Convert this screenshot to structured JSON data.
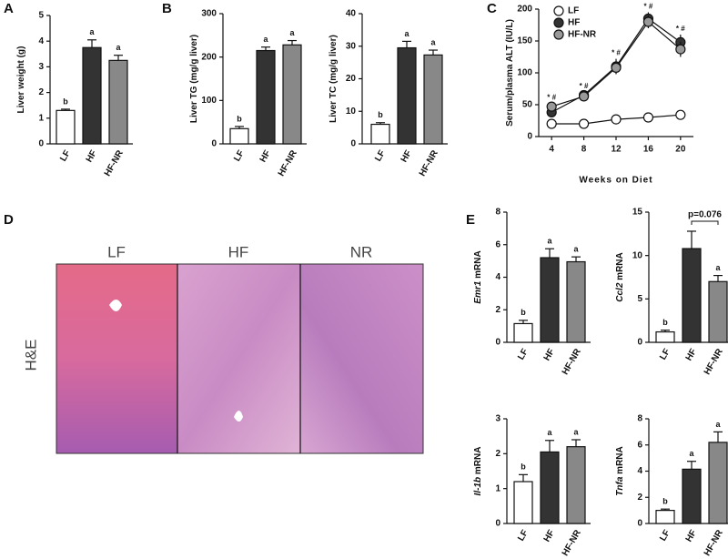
{
  "panel_labels": [
    "A",
    "B",
    "C",
    "D",
    "E"
  ],
  "histology": {
    "columns": [
      "LF",
      "HF",
      "NR"
    ],
    "row_label": "H&E"
  },
  "chart_data": [
    {
      "type": "bar",
      "ylabel": "Liver weight (g)",
      "categories": [
        "LF",
        "HF",
        "HF-NR"
      ],
      "colors": [
        "#ffffff",
        "#333333",
        "#888888"
      ],
      "values": [
        1.3,
        3.75,
        3.25
      ],
      "errors": [
        0.05,
        0.3,
        0.2
      ],
      "letters": [
        "b",
        "a",
        "a"
      ],
      "ylim": [
        0,
        5
      ],
      "yticks": [
        0,
        1,
        2,
        3,
        4,
        5
      ]
    },
    {
      "type": "bar",
      "ylabel": "Liver TG (mg/g liver)",
      "categories": [
        "LF",
        "HF",
        "HF-NR"
      ],
      "colors": [
        "#ffffff",
        "#333333",
        "#888888"
      ],
      "values": [
        35,
        215,
        228
      ],
      "errors": [
        5,
        8,
        10
      ],
      "letters": [
        "b",
        "a",
        "a"
      ],
      "ylim": [
        0,
        300
      ],
      "yticks": [
        0,
        100,
        200,
        300
      ]
    },
    {
      "type": "bar",
      "ylabel": "Liver TC (mg/g liver)",
      "categories": [
        "LF",
        "HF",
        "HF-NR"
      ],
      "colors": [
        "#ffffff",
        "#333333",
        "#888888"
      ],
      "values": [
        6,
        29.5,
        27.3
      ],
      "errors": [
        0.5,
        2,
        1.5
      ],
      "letters": [
        "b",
        "a",
        "a"
      ],
      "ylim": [
        0,
        40
      ],
      "yticks": [
        0,
        10,
        20,
        30,
        40
      ]
    },
    {
      "type": "line",
      "ylabel": "Serum/plasma ALT (IU/L)",
      "xlabel": "Weeks on Diet",
      "x": [
        4,
        8,
        12,
        16,
        20
      ],
      "xlim": [
        2.4,
        21.6
      ],
      "xticks": [
        4,
        8,
        12,
        16,
        20
      ],
      "ylim": [
        0,
        200
      ],
      "yticks": [
        0,
        50,
        100,
        150,
        200
      ],
      "point_labels": [
        "* #",
        "* #",
        "* #",
        "* #",
        "* #"
      ],
      "series": [
        {
          "name": "LF",
          "color": "#ffffff",
          "values": [
            20,
            20,
            27,
            30,
            34
          ],
          "errors": [
            2,
            2,
            3,
            3,
            3
          ]
        },
        {
          "name": "HF",
          "color": "#333333",
          "values": [
            38,
            65,
            110,
            185,
            148
          ],
          "errors": [
            5,
            5,
            12,
            10,
            12
          ]
        },
        {
          "name": "HF-NR",
          "color": "#999999",
          "values": [
            47,
            63,
            108,
            180,
            137
          ],
          "errors": [
            5,
            5,
            10,
            10,
            12
          ]
        }
      ]
    },
    {
      "type": "bar",
      "ylabel_gene": "Emr1",
      "ylabel": "mRNA",
      "categories": [
        "LF",
        "HF",
        "HF-NR"
      ],
      "colors": [
        "#ffffff",
        "#333333",
        "#888888"
      ],
      "values": [
        1.15,
        5.2,
        4.95
      ],
      "errors": [
        0.2,
        0.55,
        0.3
      ],
      "letters": [
        "b",
        "a",
        "a"
      ],
      "ylim": [
        0,
        8
      ],
      "yticks": [
        0,
        2,
        4,
        6,
        8
      ]
    },
    {
      "type": "bar",
      "ylabel_gene": "Ccl2",
      "ylabel": "mRNA",
      "categories": [
        "LF",
        "HF",
        "HF-NR"
      ],
      "colors": [
        "#ffffff",
        "#333333",
        "#888888"
      ],
      "values": [
        1.2,
        10.8,
        7.0
      ],
      "errors": [
        0.2,
        2.0,
        0.7
      ],
      "letters": [
        "b",
        "",
        "a"
      ],
      "annotation": "p=0.076",
      "ylim": [
        0,
        15
      ],
      "yticks": [
        0,
        5,
        10,
        15
      ]
    },
    {
      "type": "bar",
      "ylabel_gene": "Il-1b",
      "ylabel": "mRNA",
      "categories": [
        "LF",
        "HF",
        "HF-NR"
      ],
      "colors": [
        "#ffffff",
        "#333333",
        "#888888"
      ],
      "values": [
        1.2,
        2.05,
        2.2
      ],
      "errors": [
        0.2,
        0.33,
        0.2
      ],
      "letters": [
        "b",
        "a",
        "a"
      ],
      "ylim": [
        0,
        3
      ],
      "yticks": [
        0,
        1,
        2,
        3
      ]
    },
    {
      "type": "bar",
      "ylabel_gene": "Tnfa",
      "ylabel": "mRNA",
      "categories": [
        "LF",
        "HF",
        "HF-NR"
      ],
      "colors": [
        "#ffffff",
        "#333333",
        "#888888"
      ],
      "values": [
        1.0,
        4.15,
        6.2
      ],
      "errors": [
        0.1,
        0.6,
        0.8
      ],
      "letters": [
        "b",
        "a",
        "a"
      ],
      "ylim": [
        0,
        8
      ],
      "yticks": [
        0,
        2,
        4,
        6,
        8
      ]
    }
  ]
}
